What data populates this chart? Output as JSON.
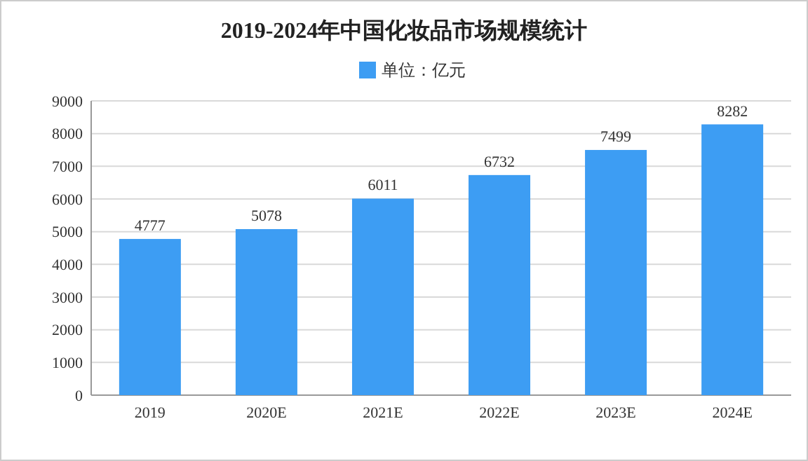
{
  "chart_data": {
    "type": "bar",
    "title": "2019-2024年中国化妆品市场规模统计",
    "categories": [
      "2019",
      "2020E",
      "2021E",
      "2022E",
      "2023E",
      "2024E"
    ],
    "series": [
      {
        "name": "单位：亿元",
        "color": "#3d9df3",
        "values": [
          4777,
          5078,
          6011,
          6732,
          7499,
          8282
        ]
      }
    ],
    "ylim": [
      0,
      9000
    ],
    "yticks": [
      0,
      1000,
      2000,
      3000,
      4000,
      5000,
      6000,
      7000,
      8000,
      9000
    ],
    "grid": "y",
    "legend": "top",
    "data_labels": true
  }
}
